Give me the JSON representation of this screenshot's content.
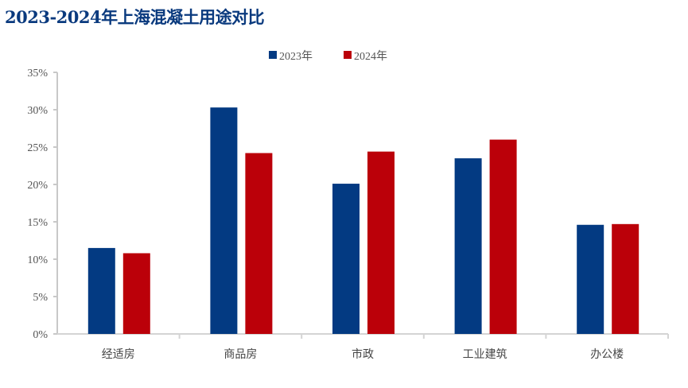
{
  "title": "2023-2024年上海混凝土用途对比",
  "chart_data": {
    "type": "bar",
    "title": "2023-2024年上海混凝土用途对比",
    "categories": [
      "经适房",
      "商品房",
      "市政",
      "工业建筑",
      "办公楼"
    ],
    "series": [
      {
        "name": "2023年",
        "color": "#033a82",
        "values": [
          11.5,
          30.3,
          20.1,
          23.5,
          14.6
        ]
      },
      {
        "name": "2024年",
        "color": "#bb0009",
        "values": [
          10.8,
          24.2,
          24.4,
          26.0,
          14.7
        ]
      }
    ],
    "ylim": [
      0,
      35
    ],
    "yticks": [
      "0%",
      "5%",
      "10%",
      "15%",
      "20%",
      "25%",
      "30%",
      "35%"
    ],
    "xlabel": "",
    "ylabel": "",
    "grid": false,
    "legend": "top-center"
  }
}
